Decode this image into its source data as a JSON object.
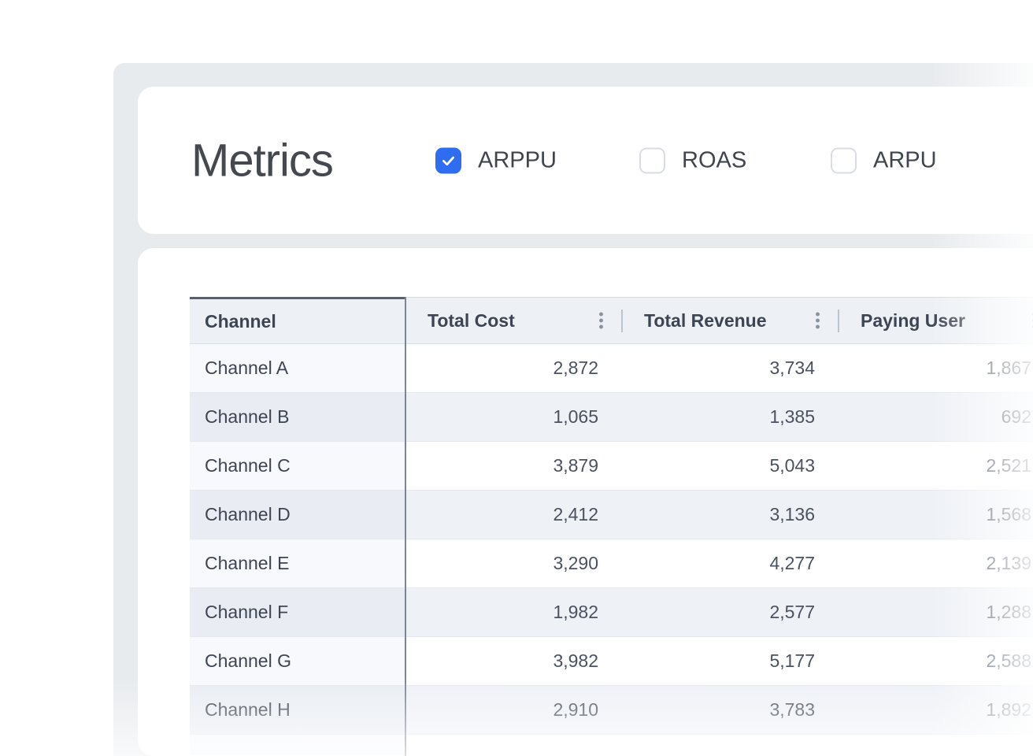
{
  "colors": {
    "accent_blue": "#2e6cf0",
    "panel_gray": "#e8ebee",
    "header_bg": "#edf1f5",
    "zebra_row_bg": "#eef1f6",
    "pinned_column_border": "#566070"
  },
  "metrics_panel": {
    "title": "Metrics",
    "checkboxes": [
      {
        "label": "ARPPU",
        "checked": true
      },
      {
        "label": "ROAS",
        "checked": false
      },
      {
        "label": "ARPU",
        "checked": false
      }
    ]
  },
  "table": {
    "columns": [
      {
        "label": "Channel",
        "has_menu": false,
        "align": "left"
      },
      {
        "label": "Total Cost",
        "has_menu": true,
        "align": "right"
      },
      {
        "label": "Total Revenue",
        "has_menu": true,
        "align": "right"
      },
      {
        "label": "Paying User",
        "has_menu": true,
        "align": "right"
      }
    ],
    "rows": [
      {
        "channel": "Channel A",
        "total_cost": "2,872",
        "total_revenue": "3,734",
        "paying_user": "1,867"
      },
      {
        "channel": "Channel B",
        "total_cost": "1,065",
        "total_revenue": "1,385",
        "paying_user": "692"
      },
      {
        "channel": "Channel C",
        "total_cost": "3,879",
        "total_revenue": "5,043",
        "paying_user": "2,521"
      },
      {
        "channel": "Channel D",
        "total_cost": "2,412",
        "total_revenue": "3,136",
        "paying_user": "1,568"
      },
      {
        "channel": "Channel E",
        "total_cost": "3,290",
        "total_revenue": "4,277",
        "paying_user": "2,139"
      },
      {
        "channel": "Channel F",
        "total_cost": "1,982",
        "total_revenue": "2,577",
        "paying_user": "1,288"
      },
      {
        "channel": "Channel G",
        "total_cost": "3,982",
        "total_revenue": "5,177",
        "paying_user": "2,588"
      },
      {
        "channel": "Channel H",
        "total_cost": "2,910",
        "total_revenue": "3,783",
        "paying_user": "1,892"
      }
    ]
  }
}
